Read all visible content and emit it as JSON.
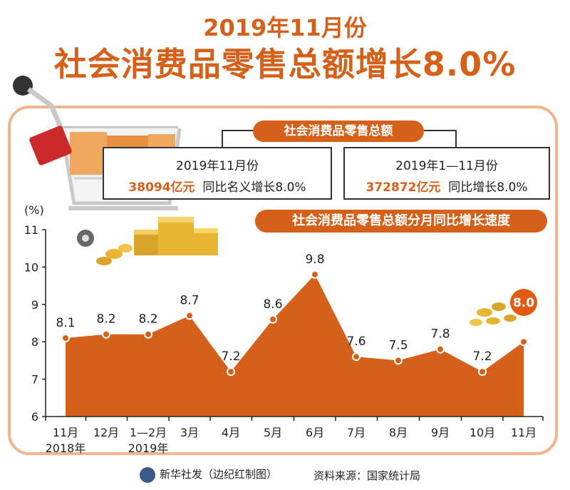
{
  "header": {
    "title_line1": "2019年11月份",
    "title_line2": "社会消费品零售总额增长8.0%"
  },
  "summary": {
    "section_label": "社会消费品零售总额",
    "box1": {
      "period": "2019年11月份",
      "value": "38094亿元",
      "desc": "同比名义增长8.0%"
    },
    "box2": {
      "period": "2019年1—11月份",
      "value": "372872亿元",
      "desc": "同比增长8.0%"
    }
  },
  "chart_data": {
    "type": "area",
    "title": "社会消费品零售总额分月同比增长速度",
    "ylabel": "(%)",
    "ylim": [
      6,
      11
    ],
    "yticks": [
      "6",
      "7",
      "8",
      "9",
      "10",
      "11"
    ],
    "categories": [
      "11月",
      "12月",
      "1—2月",
      "3月",
      "4月",
      "5月",
      "6月",
      "7月",
      "8月",
      "9月",
      "10月",
      "11月"
    ],
    "category_sublabels": [
      "2018年",
      "",
      "2019年",
      "",
      "",
      "",
      "",
      "",
      "",
      "",
      "",
      ""
    ],
    "values": [
      8.1,
      8.2,
      8.2,
      8.7,
      7.2,
      8.6,
      9.8,
      7.6,
      7.5,
      7.8,
      7.2,
      8.0
    ],
    "value_labels": [
      "8.1",
      "8.2",
      "8.2",
      "8.7",
      "7.2",
      "8.6",
      "9.8",
      "7.6",
      "7.5",
      "7.8",
      "7.2",
      "8.0"
    ],
    "fill_color": "#d5601a",
    "highlight_color": "#e05a12",
    "grid": false
  },
  "footer": {
    "credit": "新华社发（边纪红制图）",
    "source": "资料来源：国家统计局"
  }
}
